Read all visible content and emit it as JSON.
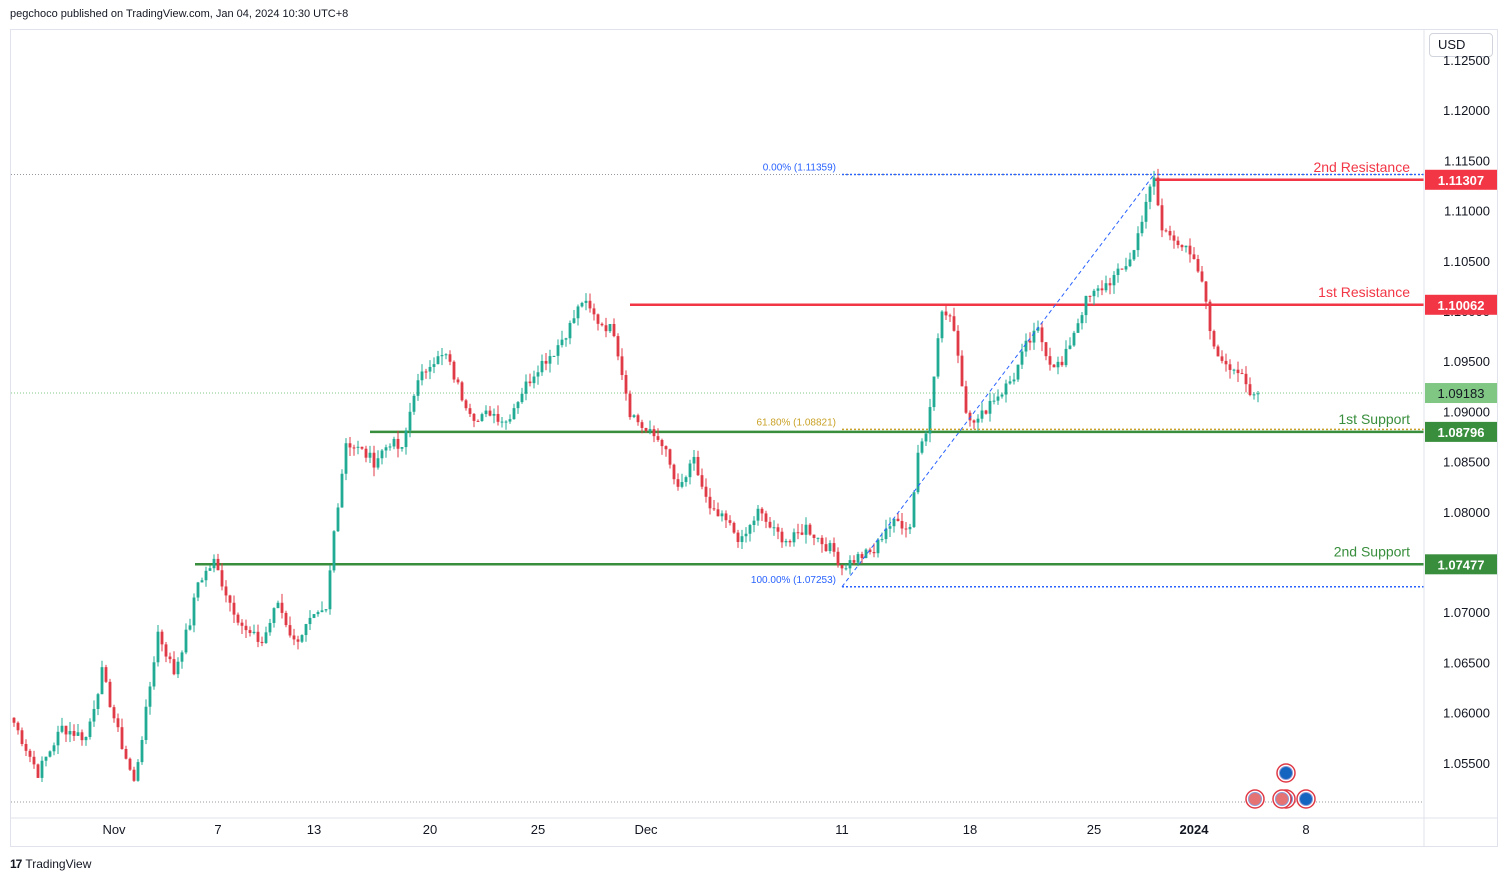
{
  "header": {
    "text": "pegchoco published on TradingView.com, Jan 04, 2024 10:30 UTC+8"
  },
  "currency": "USD",
  "footer": {
    "brand": "TradingView",
    "logo": "17"
  },
  "colors": {
    "up": "#22ab94",
    "down": "#e03a46",
    "resistance": "#f23645",
    "support": "#388e3c",
    "fib": "#2962ff",
    "fib61": "#c9a227",
    "current": "#81c784"
  },
  "icons": [
    "eu-flag-icon",
    "us-flag-icon",
    "eu-flag-icon",
    "eu-flag-icon",
    "us-flag-icon"
  ],
  "chart_data": {
    "type": "candlestick",
    "symbol_currency": "USD",
    "ylim": [
      1.0515,
      1.1265
    ],
    "y_ticks": [
      "1.12500",
      "1.12000",
      "1.11500",
      "1.11000",
      "1.10500",
      "1.10000",
      "1.09500",
      "1.09000",
      "1.08500",
      "1.08000",
      "1.07500",
      "1.07000",
      "1.06500",
      "1.06000",
      "1.05500"
    ],
    "x_ticks": [
      {
        "label": "Nov",
        "bar": 25
      },
      {
        "label": "7",
        "bar": 51
      },
      {
        "label": "13",
        "bar": 75
      },
      {
        "label": "20",
        "bar": 104
      },
      {
        "label": "25",
        "bar": 131
      },
      {
        "label": "Dec",
        "bar": 158
      },
      {
        "label": "11",
        "bar": 207
      },
      {
        "label": "18",
        "bar": 239
      },
      {
        "label": "25",
        "bar": 270
      },
      {
        "label": "2024",
        "bar": 295
      },
      {
        "label": "8",
        "bar": 323
      }
    ],
    "bar_count": 350,
    "key_closes": [
      [
        0,
        1.059
      ],
      [
        6,
        1.054
      ],
      [
        12,
        1.0585
      ],
      [
        18,
        1.0575
      ],
      [
        22,
        1.064
      ],
      [
        26,
        1.058
      ],
      [
        30,
        1.053
      ],
      [
        33,
        1.06
      ],
      [
        36,
        1.068
      ],
      [
        40,
        1.064
      ],
      [
        44,
        1.069
      ],
      [
        46,
        1.073
      ],
      [
        50,
        1.075
      ],
      [
        54,
        1.071
      ],
      [
        58,
        1.068
      ],
      [
        62,
        1.067
      ],
      [
        66,
        1.071
      ],
      [
        70,
        1.067
      ],
      [
        74,
        1.069
      ],
      [
        78,
        1.07
      ],
      [
        80,
        1.078
      ],
      [
        83,
        1.087
      ],
      [
        87,
        1.086
      ],
      [
        90,
        1.085
      ],
      [
        94,
        1.087
      ],
      [
        97,
        1.086
      ],
      [
        100,
        1.092
      ],
      [
        104,
        1.095
      ],
      [
        108,
        1.0955
      ],
      [
        112,
        1.0915
      ],
      [
        116,
        1.089
      ],
      [
        119,
        1.09
      ],
      [
        123,
        1.089
      ],
      [
        127,
        1.092
      ],
      [
        131,
        1.0945
      ],
      [
        135,
        1.096
      ],
      [
        139,
        1.0985
      ],
      [
        142,
        1.101
      ],
      [
        146,
        1.099
      ],
      [
        150,
        1.098
      ],
      [
        154,
        1.09
      ],
      [
        158,
        1.088
      ],
      [
        162,
        1.087
      ],
      [
        166,
        1.082
      ],
      [
        170,
        1.085
      ],
      [
        174,
        1.08
      ],
      [
        178,
        1.079
      ],
      [
        182,
        1.077
      ],
      [
        186,
        1.08
      ],
      [
        190,
        1.078
      ],
      [
        194,
        1.077
      ],
      [
        198,
        1.0785
      ],
      [
        202,
        1.077
      ],
      [
        205,
        1.076
      ],
      [
        207,
        1.0745
      ],
      [
        211,
        1.0755
      ],
      [
        215,
        1.076
      ],
      [
        218,
        1.0785
      ],
      [
        221,
        1.079
      ],
      [
        224,
        1.0785
      ],
      [
        226,
        1.086
      ],
      [
        228,
        1.088
      ],
      [
        230,
        1.094
      ],
      [
        232,
        1.1
      ],
      [
        235,
        1.0985
      ],
      [
        238,
        1.09
      ],
      [
        241,
        1.089
      ],
      [
        244,
        1.091
      ],
      [
        247,
        1.092
      ],
      [
        250,
        1.0935
      ],
      [
        253,
        1.0965
      ],
      [
        256,
        1.098
      ],
      [
        259,
        1.095
      ],
      [
        262,
        1.0945
      ],
      [
        265,
        1.098
      ],
      [
        268,
        1.101
      ],
      [
        271,
        1.102
      ],
      [
        274,
        1.103
      ],
      [
        277,
        1.104
      ],
      [
        280,
        1.106
      ],
      [
        283,
        1.111
      ],
      [
        285,
        1.113
      ],
      [
        287,
        1.108
      ],
      [
        290,
        1.1075
      ],
      [
        293,
        1.106
      ],
      [
        296,
        1.104
      ],
      [
        298,
        1.101
      ],
      [
        300,
        1.096
      ],
      [
        303,
        1.095
      ],
      [
        306,
        1.094
      ],
      [
        309,
        1.0915
      ],
      [
        311,
        1.0918
      ]
    ],
    "horizontal_levels": [
      {
        "label": "2nd Resistance",
        "value": "1.11307",
        "kind": "resistance"
      },
      {
        "label": "1st Resistance",
        "value": "1.10062",
        "kind": "resistance"
      },
      {
        "label": "1st Support",
        "value": "1.08796",
        "kind": "support"
      },
      {
        "label": "2nd Support",
        "value": "1.07477",
        "kind": "support"
      }
    ],
    "current_price": "1.09183",
    "fibonacci": [
      {
        "label": "0.00% (1.11359)",
        "value": 1.11359
      },
      {
        "label": "61.80% (1.08821)",
        "value": 1.08821
      },
      {
        "label": "100.00% (1.07253)",
        "value": 1.07253
      }
    ],
    "fib_anchor_bars": [
      207,
      285
    ]
  }
}
